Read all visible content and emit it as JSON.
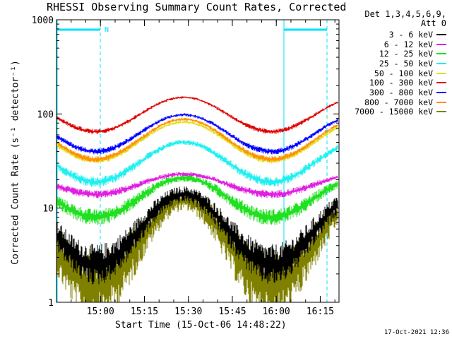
{
  "chart_data": {
    "type": "line",
    "title": "RHESSI Observing Summary Count Rates, Corrected",
    "xlabel": "Start Time (15-Oct-06 14:48:22)",
    "ylabel": "Corrected Count Rate (s⁻¹ detector⁻¹)",
    "yscale": "log",
    "ylim": [
      1,
      1000
    ],
    "xlim_minutes": [
      -3.4,
      93
    ],
    "x_ticks": [
      "15:00",
      "15:15",
      "15:30",
      "15:45",
      "16:00",
      "16:15"
    ],
    "x_tick_minutes": [
      11.6,
      26.6,
      41.6,
      56.6,
      71.6,
      86.6
    ],
    "y_ticks": [
      "1",
      "10",
      "100",
      "1000"
    ],
    "grid": false,
    "legend_placement": "right",
    "legend_header": [
      "Det 1,3,4,5,6,9,",
      "Att 0"
    ],
    "annotation": "N",
    "series": [
      {
        "name": "3 - 6 keV",
        "color": "#000000",
        "min": 2.5,
        "max": 14
      },
      {
        "name": "6 - 12 keV",
        "color": "#e020e0",
        "min": 14,
        "max": 23
      },
      {
        "name": "12 - 25 keV",
        "color": "#20e020",
        "min": 8,
        "max": 21
      },
      {
        "name": "25 - 50 keV",
        "color": "#20f0f0",
        "min": 19,
        "max": 50
      },
      {
        "name": "50 - 100 keV",
        "color": "#e0e020",
        "min": 32,
        "max": 82
      },
      {
        "name": "100 - 300 keV",
        "color": "#e00000",
        "min": 65,
        "max": 150
      },
      {
        "name": "300 - 800 keV",
        "color": "#0000ff",
        "min": 40,
        "max": 98
      },
      {
        "name": "800 - 7000 keV",
        "color": "#ff9000",
        "min": 33,
        "max": 88
      },
      {
        "name": "7000 - 15000 keV",
        "color": "#808000",
        "min": 1.5,
        "max": 12
      }
    ],
    "colors": {
      "axis": "#000000",
      "attenuator_lines": "#00e0ff"
    }
  },
  "footer": {
    "timestamp": "17-Oct-2021 12:36"
  }
}
